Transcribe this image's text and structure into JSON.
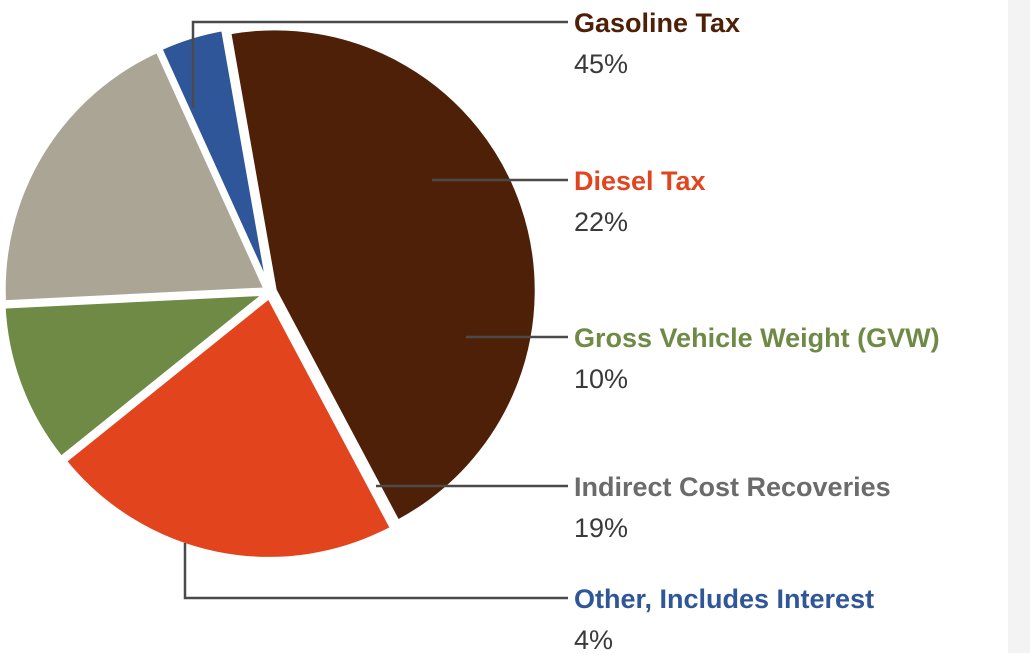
{
  "chart_data": {
    "type": "pie",
    "title": "",
    "slices": [
      {
        "label": "Gasoline Tax",
        "percent_label": "45%",
        "value": 45,
        "color": "#4f2008"
      },
      {
        "label": "Diesel Tax",
        "percent_label": "22%",
        "value": 22,
        "color": "#e2441e"
      },
      {
        "label": "Gross Vehicle Weight (GVW)",
        "percent_label": "10%",
        "value": 10,
        "color": "#6e8a45"
      },
      {
        "label": "Indirect Cost Recoveries",
        "percent_label": "19%",
        "value": 19,
        "color": "#aba596"
      },
      {
        "label": "Other, Includes Interest",
        "percent_label": "4%",
        "value": 4,
        "color": "#2e5699"
      }
    ],
    "legend_placement": "right",
    "leader_line_color": "#4a4a4a"
  }
}
